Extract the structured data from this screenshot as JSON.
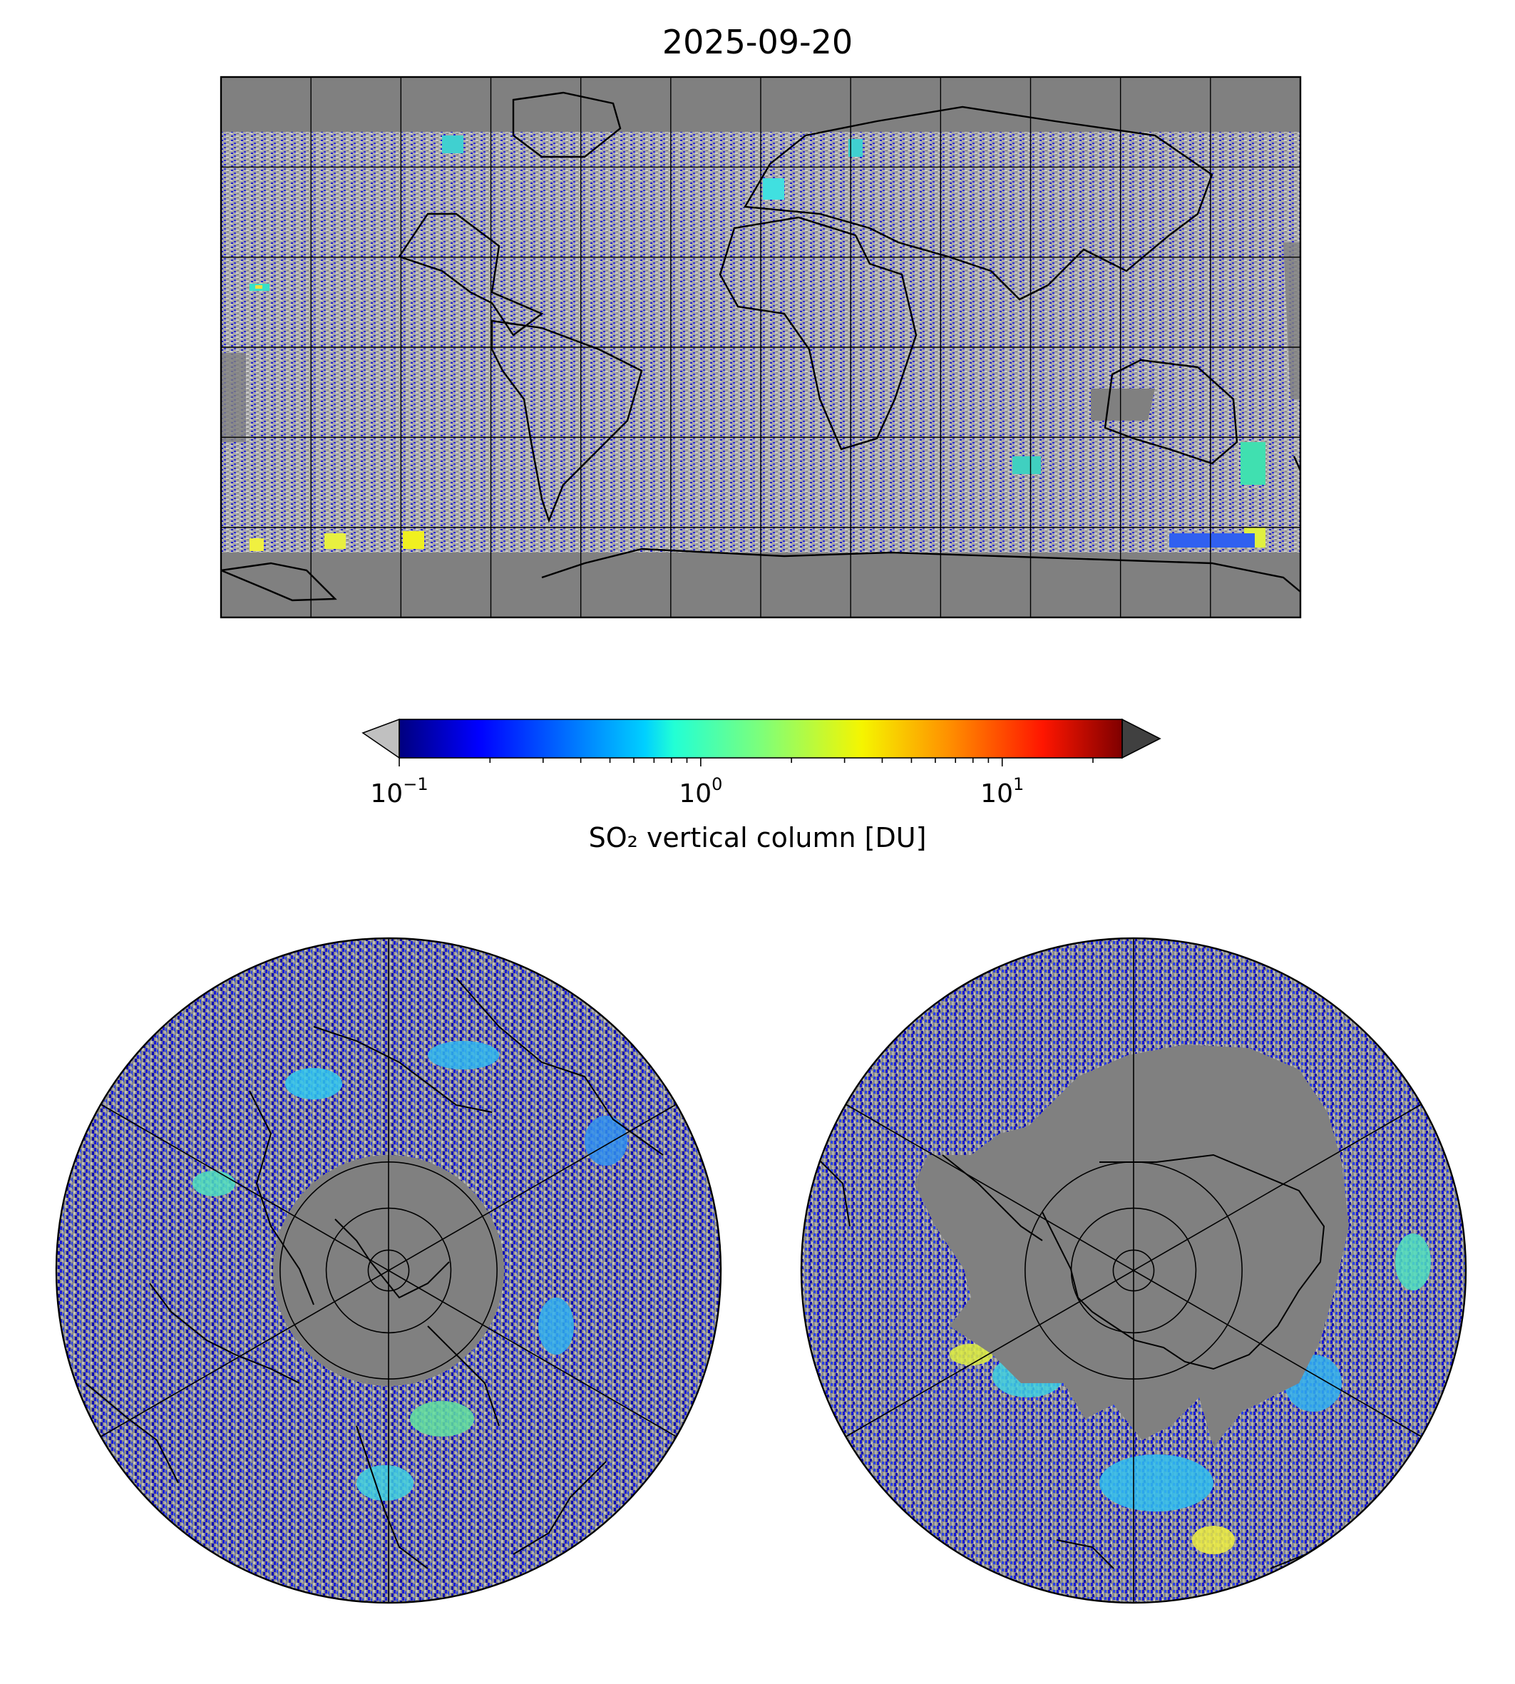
{
  "figure": {
    "title": "2025-09-20",
    "colorbar": {
      "label": "SO₂ vertical column [DU]",
      "scale": "log",
      "range_du": [
        0.1,
        25
      ],
      "colormap": "jet",
      "extend": "both",
      "under_color": "#c0c0c0",
      "over_color": "#404040",
      "ticks": [
        {
          "value": 0.1,
          "base": "10",
          "exp": "−1"
        },
        {
          "value": 1,
          "base": "10",
          "exp": "0"
        },
        {
          "value": 10,
          "base": "10",
          "exp": "1"
        }
      ]
    },
    "colors": {
      "no_data": "#808080",
      "below_range": "#c0c0c0",
      "coastline": "#000000",
      "gridline": "#000000"
    }
  },
  "maps": {
    "global": {
      "projection": "plate-carree",
      "lon_gridlines": [
        -180,
        -150,
        -120,
        -90,
        -60,
        -30,
        0,
        30,
        60,
        90,
        120,
        150,
        180
      ],
      "lat_gridlines": [
        -90,
        -60,
        -30,
        0,
        30,
        60,
        90
      ]
    },
    "north_polar": {
      "projection": "north-polar-stereographic",
      "lat_circles": [
        80,
        60,
        40
      ],
      "meridians": [
        0,
        60,
        120,
        180,
        240,
        300
      ]
    },
    "south_polar": {
      "projection": "south-polar-stereographic",
      "lat_circles": [
        -80,
        -60,
        -40
      ],
      "meridians": [
        0,
        60,
        120,
        180,
        240,
        300
      ]
    }
  }
}
